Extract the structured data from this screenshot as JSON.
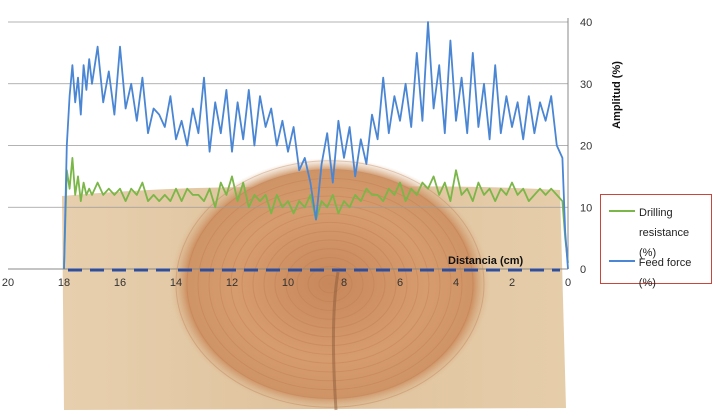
{
  "chart_data": {
    "type": "line",
    "title": "",
    "xlabel": "Distancia (cm)",
    "ylabel": "Amplitud (%)",
    "xlim": [
      20,
      0
    ],
    "ylim": [
      0,
      40
    ],
    "x_ticks": [
      "20",
      "18",
      "16",
      "14",
      "12",
      "10",
      "8",
      "6",
      "4",
      "2",
      "0"
    ],
    "y_ticks": [
      "0",
      "10",
      "20",
      "30",
      "40"
    ],
    "grid": "horizontal",
    "legend": "right",
    "colors": {
      "drilling": "#7ab648",
      "feed": "#4a86d4",
      "baseline": "#2e4e9e",
      "legend_border": "#c9463d"
    },
    "x": [
      18.0,
      17.9,
      17.8,
      17.7,
      17.6,
      17.5,
      17.4,
      17.3,
      17.2,
      17.1,
      17.0,
      16.8,
      16.6,
      16.4,
      16.2,
      16.0,
      15.8,
      15.6,
      15.4,
      15.2,
      15.0,
      14.8,
      14.6,
      14.4,
      14.2,
      14.0,
      13.8,
      13.6,
      13.4,
      13.2,
      13.0,
      12.8,
      12.6,
      12.4,
      12.2,
      12.0,
      11.8,
      11.6,
      11.4,
      11.2,
      11.0,
      10.8,
      10.6,
      10.4,
      10.2,
      10.0,
      9.8,
      9.6,
      9.4,
      9.2,
      9.0,
      8.8,
      8.6,
      8.4,
      8.2,
      8.0,
      7.8,
      7.6,
      7.4,
      7.2,
      7.0,
      6.8,
      6.6,
      6.4,
      6.2,
      6.0,
      5.8,
      5.6,
      5.4,
      5.2,
      5.0,
      4.8,
      4.6,
      4.4,
      4.2,
      4.0,
      3.8,
      3.6,
      3.4,
      3.2,
      3.0,
      2.8,
      2.6,
      2.4,
      2.2,
      2.0,
      1.8,
      1.6,
      1.4,
      1.2,
      1.0,
      0.8,
      0.6,
      0.4,
      0.2,
      0.1,
      0.0
    ],
    "series": [
      {
        "name": "Feed force (%)",
        "values": [
          0,
          20,
          28,
          33,
          27,
          31,
          25,
          33,
          29,
          34,
          30,
          36,
          27,
          32,
          25,
          36,
          26,
          30,
          24,
          31,
          22,
          26,
          25,
          23,
          28,
          21,
          24,
          20,
          26,
          22,
          31,
          19,
          27,
          22,
          29,
          19,
          27,
          21,
          29,
          20,
          28,
          23,
          26,
          20,
          24,
          19,
          23,
          16,
          18,
          14,
          8,
          17,
          22,
          14,
          24,
          18,
          23,
          15,
          21,
          17,
          25,
          21,
          31,
          22,
          28,
          24,
          30,
          23,
          35,
          24,
          40,
          26,
          33,
          22,
          37,
          24,
          31,
          22,
          35,
          23,
          30,
          21,
          33,
          22,
          28,
          23,
          27,
          21,
          28,
          22,
          27,
          24,
          28,
          20,
          18,
          6,
          0
        ]
      },
      {
        "name": "Drilling resistance (%)",
        "values": [
          0,
          16,
          13,
          18,
          12,
          15,
          11,
          14,
          12,
          13,
          12,
          14,
          12,
          13,
          12,
          13,
          11,
          13,
          12,
          14,
          11,
          12,
          11,
          12,
          11,
          13,
          11,
          13,
          12,
          12,
          11,
          13,
          10,
          14,
          12,
          15,
          11,
          14,
          10,
          12,
          11,
          12,
          9,
          12,
          10,
          11,
          9,
          11,
          10,
          12,
          8,
          11,
          10,
          12,
          9,
          11,
          10,
          12,
          11,
          13,
          12,
          12,
          11,
          13,
          12,
          14,
          11,
          13,
          12,
          14,
          13,
          15,
          12,
          14,
          11,
          16,
          12,
          13,
          11,
          14,
          12,
          13,
          11,
          13,
          12,
          14,
          12,
          13,
          11,
          12,
          13,
          12,
          13,
          12,
          11,
          5,
          1
        ]
      }
    ]
  }
}
